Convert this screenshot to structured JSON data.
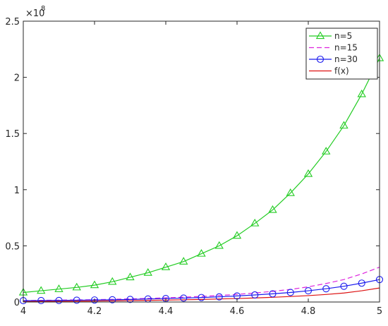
{
  "chart_data": {
    "type": "line",
    "title": "",
    "xlabel": "",
    "ylabel": "",
    "xlim": [
      4,
      5
    ],
    "ylim": [
      0,
      2.5
    ],
    "y_exponent_label": "×10",
    "y_exponent_power": "8",
    "grid": false,
    "legend_position": "top-right",
    "x_ticks": [
      4,
      4.2,
      4.4,
      4.6,
      4.8,
      5
    ],
    "x_tick_labels": [
      "4",
      "4.2",
      "4.4",
      "4.6",
      "4.8",
      "5"
    ],
    "y_ticks": [
      0,
      0.5,
      1,
      1.5,
      2,
      2.5
    ],
    "y_tick_labels": [
      "0",
      "0.5",
      "1",
      "1.5",
      "2",
      "2.5"
    ],
    "x": [
      4.0,
      4.05,
      4.1,
      4.15,
      4.2,
      4.25,
      4.3,
      4.35,
      4.4,
      4.45,
      4.5,
      4.55,
      4.6,
      4.65,
      4.7,
      4.75,
      4.8,
      4.85,
      4.9,
      4.95,
      5.0
    ],
    "series": [
      {
        "name": "n=5",
        "color": "#22cc22",
        "style": "solid",
        "marker": "triangle",
        "values": [
          0.085,
          0.1,
          0.115,
          0.13,
          0.15,
          0.18,
          0.22,
          0.26,
          0.31,
          0.36,
          0.43,
          0.5,
          0.59,
          0.7,
          0.82,
          0.97,
          1.14,
          1.34,
          1.57,
          1.85,
          2.17
        ]
      },
      {
        "name": "n=15",
        "color": "#dd22dd",
        "style": "dashed",
        "marker": "none",
        "values": [
          0.013,
          0.015,
          0.017,
          0.019,
          0.021,
          0.024,
          0.028,
          0.032,
          0.037,
          0.043,
          0.05,
          0.058,
          0.068,
          0.08,
          0.095,
          0.112,
          0.135,
          0.165,
          0.2,
          0.25,
          0.31
        ]
      },
      {
        "name": "n=30",
        "color": "#1a1aee",
        "style": "solid",
        "marker": "circle",
        "values": [
          0.012,
          0.013,
          0.014,
          0.016,
          0.018,
          0.02,
          0.023,
          0.027,
          0.031,
          0.035,
          0.04,
          0.046,
          0.054,
          0.063,
          0.073,
          0.085,
          0.1,
          0.118,
          0.14,
          0.168,
          0.2
        ]
      },
      {
        "name": "f(x)",
        "color": "#dd1111",
        "style": "solid",
        "marker": "none",
        "values": [
          0.005,
          0.006,
          0.007,
          0.008,
          0.009,
          0.011,
          0.013,
          0.015,
          0.017,
          0.02,
          0.023,
          0.027,
          0.031,
          0.036,
          0.042,
          0.049,
          0.057,
          0.067,
          0.08,
          0.1,
          0.125
        ]
      }
    ]
  }
}
